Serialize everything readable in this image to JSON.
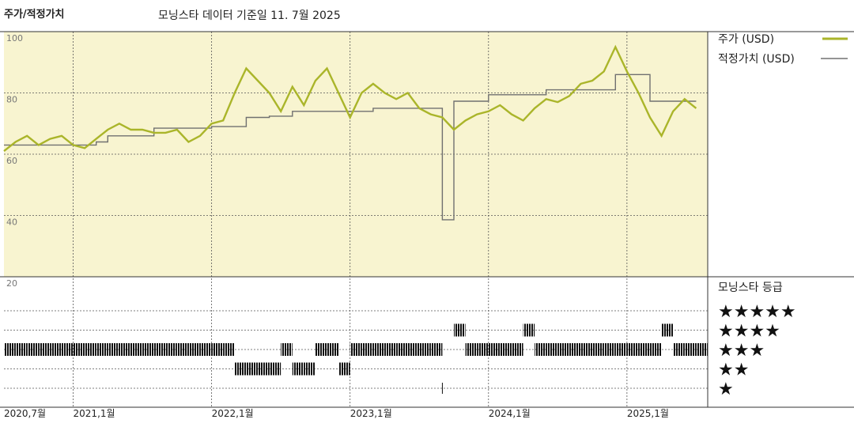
{
  "chart_data": {
    "type": "line",
    "title": "주가/적정가치",
    "subtitle": "모닝스타 데이터 기준일 11. 7월 2025",
    "x": [
      "2020-07",
      "2020-08",
      "2020-09",
      "2020-10",
      "2020-11",
      "2020-12",
      "2021-01",
      "2021-02",
      "2021-03",
      "2021-04",
      "2021-05",
      "2021-06",
      "2021-07",
      "2021-08",
      "2021-09",
      "2021-10",
      "2021-11",
      "2021-12",
      "2022-01",
      "2022-02",
      "2022-03",
      "2022-04",
      "2022-05",
      "2022-06",
      "2022-07",
      "2022-08",
      "2022-09",
      "2022-10",
      "2022-11",
      "2022-12",
      "2023-01",
      "2023-02",
      "2023-03",
      "2023-04",
      "2023-05",
      "2023-06",
      "2023-07",
      "2023-08",
      "2023-09",
      "2023-10",
      "2023-11",
      "2023-12",
      "2024-01",
      "2024-02",
      "2024-03",
      "2024-04",
      "2024-05",
      "2024-06",
      "2024-07",
      "2024-08",
      "2024-09",
      "2024-10",
      "2024-11",
      "2024-12",
      "2025-01",
      "2025-02",
      "2025-03",
      "2025-04",
      "2025-05",
      "2025-06",
      "2025-07"
    ],
    "xlim": [
      "2020-07",
      "2025-08"
    ],
    "xticks": [
      {
        "value": "2020-07",
        "label": "2020,7월"
      },
      {
        "value": "2021-01",
        "label": "2021,1월"
      },
      {
        "value": "2022-01",
        "label": "2022,1월"
      },
      {
        "value": "2023-01",
        "label": "2023,1월"
      },
      {
        "value": "2024-01",
        "label": "2024,1월"
      },
      {
        "value": "2025-01",
        "label": "2025,1월"
      }
    ],
    "ylim": [
      20,
      100
    ],
    "yticks": [
      20,
      40,
      60,
      80,
      100
    ],
    "grid": true,
    "series": [
      {
        "name": "주가 (USD)",
        "color": "#aab52a",
        "values": [
          61,
          64,
          66,
          63,
          65,
          66,
          63,
          62,
          65,
          68,
          70,
          68,
          68,
          67,
          67,
          68,
          64,
          66,
          70,
          71,
          80,
          88,
          84,
          80,
          74,
          82,
          76,
          84,
          88,
          80,
          72,
          80,
          83,
          80,
          78,
          80,
          75,
          73,
          72,
          68,
          71,
          73,
          74,
          76,
          73,
          71,
          75,
          78,
          77,
          79,
          83,
          84,
          87,
          95,
          87,
          80,
          72,
          66,
          74,
          78,
          75
        ]
      },
      {
        "name": "적정가치 (USD)",
        "color": "#707070",
        "values": [
          63,
          63,
          63,
          63,
          63,
          63,
          63,
          63,
          64,
          66,
          66,
          66,
          66,
          68.5,
          68.5,
          68.5,
          68.5,
          68.5,
          69,
          69,
          69,
          72,
          72,
          72.4,
          72.4,
          74,
          74,
          74,
          74,
          74,
          74,
          74,
          75,
          75,
          75,
          75,
          75,
          75,
          38.6,
          77.3,
          77.3,
          77.3,
          79.4,
          79.4,
          79.4,
          79.4,
          79.4,
          81,
          81,
          81,
          81,
          81,
          81,
          86,
          86,
          86,
          77.3,
          77.3,
          77.3,
          77.3,
          77.3
        ]
      }
    ],
    "ratings": {
      "title": "모닝스타 등급",
      "levels": [
        5,
        4,
        3,
        2,
        1
      ],
      "labels": [
        "★★★★★",
        "★★★★",
        "★★★",
        "★★",
        "★"
      ],
      "values": [
        3,
        3,
        3,
        3,
        3,
        3,
        3,
        3,
        3,
        3,
        3,
        3,
        3,
        3,
        3,
        3,
        3,
        3,
        3,
        3,
        2,
        2,
        2,
        2,
        3,
        2,
        2,
        3,
        3,
        2,
        3,
        3,
        3,
        3,
        3,
        3,
        3,
        3,
        1,
        4,
        3,
        3,
        3,
        3,
        3,
        4,
        3,
        3,
        3,
        3,
        3,
        3,
        3,
        3,
        3,
        3,
        3,
        4,
        3,
        3,
        3
      ]
    }
  }
}
